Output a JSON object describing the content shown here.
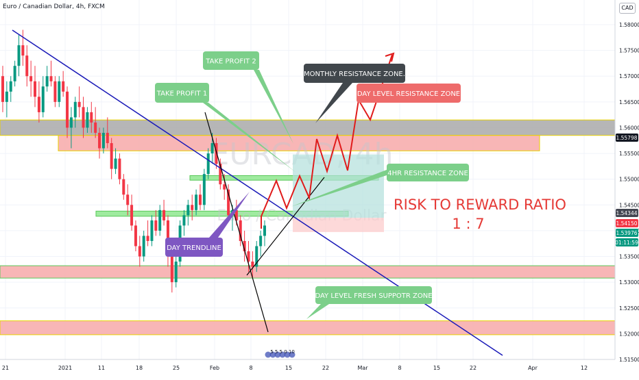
{
  "header": {
    "symbol_title": "Euro / Canadian Dollar, 4h, FXCM",
    "currency_badge": "CAD"
  },
  "watermark": {
    "line1": "EURCAD, 4h",
    "line2": "Euro / Canadian Dollar"
  },
  "annotations": {
    "take_profit_1": "TAKE PROFIT 1",
    "take_profit_2": "TAKE PROFIT 2",
    "monthly_resistance": "MONTHLY RESISTANCE ZONE.",
    "day_level_resistance": "DAY LEVEL RESISTANCE ZONE",
    "four_hr_resistance": "4HR RESISTANCE ZONE",
    "day_trendline": "DAY TRENDLINE",
    "day_level_support": "DAY LEVEL FRESH SUPPOTR ZONE",
    "risk_reward_line1": "RISK TO REWARD RATIO",
    "risk_reward_line2": "1 : 7"
  },
  "events_label": "5 5 5 0 10",
  "price_badges": [
    {
      "text": "1.55798",
      "color": "#131722"
    },
    {
      "text": "1.54344",
      "color": "#434651"
    },
    {
      "text": "1.54150",
      "color": "#f23645"
    },
    {
      "text": "1.53976",
      "color": "#089981"
    },
    {
      "text": "01:11:59",
      "color": "#089981"
    }
  ],
  "colors": {
    "bull": "#089981",
    "bear": "#f23645",
    "trendline": "#1a1ab8",
    "zone_red": "#f7a9a9",
    "zone_gray": "#a9a9a9",
    "zone_green": "#8ee88e",
    "box_green": "#7ccf8a",
    "box_dark": "#41474c",
    "box_red": "#ee6b6b",
    "box_purple": "#7e57c2",
    "rr_text": "#e53935"
  },
  "chart_data": {
    "type": "candlestick",
    "title": "Euro / Canadian Dollar, 4h, FXCM",
    "y_axis": {
      "ylim": [
        1.5125,
        1.585
      ],
      "ticks": [
        "1.58000",
        "1.57500",
        "1.57000",
        "1.56500",
        "1.56000",
        "1.55500",
        "1.55000",
        "1.54500",
        "1.54000",
        "1.53500",
        "1.53000",
        "1.52500",
        "1.52000",
        "1.51500"
      ],
      "tick_values": [
        1.58,
        1.575,
        1.57,
        1.565,
        1.56,
        1.555,
        1.55,
        1.545,
        1.54,
        1.535,
        1.53,
        1.525,
        1.52,
        1.515
      ]
    },
    "x_axis": {
      "ticks": [
        "21",
        "2021",
        "11",
        "18",
        "25",
        "Feb",
        "8",
        "15",
        "22",
        "Mar",
        "8",
        "15",
        "22",
        "Apr",
        "12"
      ]
    },
    "zones": [
      {
        "name": "monthly-resistance-zone",
        "from": 1.5585,
        "to": 1.5615,
        "color": "gray"
      },
      {
        "name": "day-resistance-zone",
        "from": 1.5555,
        "to": 1.5585,
        "color": "red"
      },
      {
        "name": "4hr-resistance-zone",
        "from": 1.5498,
        "to": 1.5507,
        "color": "green"
      },
      {
        "name": "4hr-support-zone",
        "from": 1.5428,
        "to": 1.5438,
        "color": "green"
      },
      {
        "name": "day-support-zone",
        "from": 1.5308,
        "to": 1.5332,
        "color": "red"
      },
      {
        "name": "fresh-support-zone",
        "from": 1.5198,
        "to": 1.5225,
        "color": "red"
      }
    ],
    "trade": {
      "entry": 1.5425,
      "target": 1.5548,
      "stop": 1.5408,
      "ratio": "1 : 7"
    },
    "candles": [
      [
        1.57,
        1.572,
        1.563,
        1.565
      ],
      [
        1.565,
        1.569,
        1.562,
        1.567
      ],
      [
        1.567,
        1.57,
        1.565,
        1.569
      ],
      [
        1.569,
        1.573,
        1.568,
        1.572
      ],
      [
        1.572,
        1.578,
        1.57,
        1.576
      ],
      [
        1.576,
        1.579,
        1.572,
        1.574
      ],
      [
        1.574,
        1.576,
        1.568,
        1.57
      ],
      [
        1.57,
        1.573,
        1.566,
        1.569
      ],
      [
        1.569,
        1.572,
        1.564,
        1.566
      ],
      [
        1.566,
        1.569,
        1.561,
        1.563
      ],
      [
        1.563,
        1.57,
        1.562,
        1.568
      ],
      [
        1.568,
        1.572,
        1.567,
        1.57
      ],
      [
        1.57,
        1.573,
        1.568,
        1.569
      ],
      [
        1.569,
        1.57,
        1.564,
        1.565
      ],
      [
        1.565,
        1.57,
        1.564,
        1.569
      ],
      [
        1.569,
        1.571,
        1.566,
        1.567
      ],
      [
        1.567,
        1.568,
        1.558,
        1.56
      ],
      [
        1.56,
        1.564,
        1.556,
        1.562
      ],
      [
        1.562,
        1.566,
        1.56,
        1.565
      ],
      [
        1.565,
        1.568,
        1.562,
        1.564
      ],
      [
        1.564,
        1.566,
        1.558,
        1.56
      ],
      [
        1.56,
        1.564,
        1.559,
        1.563
      ],
      [
        1.563,
        1.565,
        1.559,
        1.561
      ],
      [
        1.561,
        1.564,
        1.558,
        1.559
      ],
      [
        1.559,
        1.56,
        1.554,
        1.556
      ],
      [
        1.556,
        1.56,
        1.555,
        1.559
      ],
      [
        1.559,
        1.562,
        1.556,
        1.557
      ],
      [
        1.557,
        1.558,
        1.55,
        1.552
      ],
      [
        1.552,
        1.556,
        1.551,
        1.554
      ],
      [
        1.554,
        1.555,
        1.549,
        1.55
      ],
      [
        1.55,
        1.551,
        1.546,
        1.547
      ],
      [
        1.547,
        1.549,
        1.543,
        1.545
      ],
      [
        1.545,
        1.547,
        1.54,
        1.541
      ],
      [
        1.541,
        1.542,
        1.536,
        1.537
      ],
      [
        1.537,
        1.539,
        1.533,
        1.535
      ],
      [
        1.535,
        1.54,
        1.534,
        1.539
      ],
      [
        1.539,
        1.542,
        1.537,
        1.538
      ],
      [
        1.538,
        1.543,
        1.537,
        1.542
      ],
      [
        1.542,
        1.544,
        1.539,
        1.54
      ],
      [
        1.54,
        1.545,
        1.539,
        1.544
      ],
      [
        1.544,
        1.546,
        1.541,
        1.542
      ],
      [
        1.542,
        1.543,
        1.533,
        1.535
      ],
      [
        1.535,
        1.536,
        1.528,
        1.53
      ],
      [
        1.53,
        1.536,
        1.529,
        1.534
      ],
      [
        1.534,
        1.542,
        1.533,
        1.541
      ],
      [
        1.541,
        1.544,
        1.539,
        1.543
      ],
      [
        1.543,
        1.546,
        1.541,
        1.545
      ],
      [
        1.545,
        1.547,
        1.542,
        1.544
      ],
      [
        1.544,
        1.548,
        1.543,
        1.547
      ],
      [
        1.547,
        1.549,
        1.544,
        1.545
      ],
      [
        1.545,
        1.552,
        1.544,
        1.551
      ],
      [
        1.551,
        1.556,
        1.55,
        1.555
      ],
      [
        1.555,
        1.559,
        1.553,
        1.557
      ],
      [
        1.557,
        1.558,
        1.552,
        1.553
      ],
      [
        1.553,
        1.554,
        1.548,
        1.549
      ],
      [
        1.549,
        1.551,
        1.546,
        1.548
      ],
      [
        1.548,
        1.549,
        1.542,
        1.543
      ],
      [
        1.543,
        1.545,
        1.54,
        1.544
      ],
      [
        1.544,
        1.546,
        1.541,
        1.542
      ],
      [
        1.542,
        1.543,
        1.537,
        1.538
      ],
      [
        1.538,
        1.54,
        1.534,
        1.536
      ],
      [
        1.536,
        1.538,
        1.532,
        1.534
      ],
      [
        1.534,
        1.536,
        1.531,
        1.533
      ],
      [
        1.533,
        1.538,
        1.532,
        1.537
      ],
      [
        1.537,
        1.54,
        1.535,
        1.539
      ],
      [
        1.539,
        1.542,
        1.537,
        1.541
      ]
    ]
  }
}
